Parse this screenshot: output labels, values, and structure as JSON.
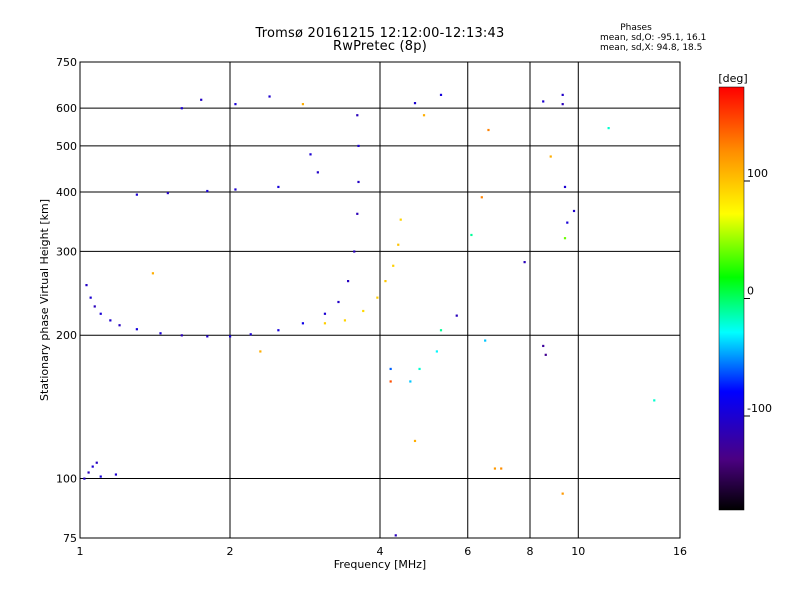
{
  "header": {
    "title": "Tromsø 20161215 12:12:00-12:13:43",
    "subtitle": "RwPretec (8p)",
    "phases_title": "Phases",
    "phases_o": "mean, sd,O: -95.1, 16.1",
    "phases_x": "mean, sd,X:  94.8, 18.5"
  },
  "chart_data": {
    "type": "scatter",
    "xscale": "log",
    "yscale": "log",
    "xlim": [
      1,
      16
    ],
    "ylim": [
      75,
      750
    ],
    "xlabel": "Frequency [MHz]",
    "ylabel": "Stationary phase Virtual Height [km]",
    "x_ticks": [
      1,
      2,
      4,
      6,
      8,
      10,
      16
    ],
    "x_tick_labels": [
      "1",
      "2",
      "4",
      "6",
      "8",
      "10",
      "16"
    ],
    "y_ticks": [
      75,
      100,
      200,
      300,
      400,
      500,
      600,
      750
    ],
    "y_tick_labels": [
      "75",
      "100",
      "200",
      "300",
      "400",
      "500",
      "600",
      "750"
    ],
    "grid": true,
    "colorbar": {
      "label": "[deg]",
      "range": [
        -180,
        180
      ],
      "ticks": [
        -100,
        0,
        100
      ],
      "tick_labels": [
        "-100",
        "0",
        "100"
      ],
      "colormap": "rainbow"
    },
    "points": [
      {
        "f": 1.02,
        "h": 100,
        "phase": -105
      },
      {
        "f": 1.04,
        "h": 103,
        "phase": -110
      },
      {
        "f": 1.06,
        "h": 106,
        "phase": -100
      },
      {
        "f": 1.08,
        "h": 108,
        "phase": -108
      },
      {
        "f": 1.1,
        "h": 101,
        "phase": -95
      },
      {
        "f": 1.18,
        "h": 102,
        "phase": -102
      },
      {
        "f": 1.03,
        "h": 255,
        "phase": -105
      },
      {
        "f": 1.05,
        "h": 240,
        "phase": -100
      },
      {
        "f": 1.07,
        "h": 230,
        "phase": -110
      },
      {
        "f": 1.1,
        "h": 222,
        "phase": -98
      },
      {
        "f": 1.15,
        "h": 215,
        "phase": -102
      },
      {
        "f": 1.2,
        "h": 210,
        "phase": -108
      },
      {
        "f": 1.3,
        "h": 206,
        "phase": -95
      },
      {
        "f": 1.45,
        "h": 202,
        "phase": -100
      },
      {
        "f": 1.6,
        "h": 200,
        "phase": -112
      },
      {
        "f": 1.8,
        "h": 199,
        "phase": -104
      },
      {
        "f": 2.0,
        "h": 199,
        "phase": -98
      },
      {
        "f": 2.2,
        "h": 201,
        "phase": -100
      },
      {
        "f": 2.5,
        "h": 205,
        "phase": -96
      },
      {
        "f": 2.8,
        "h": 212,
        "phase": -90
      },
      {
        "f": 3.1,
        "h": 222,
        "phase": -100
      },
      {
        "f": 3.3,
        "h": 235,
        "phase": -105
      },
      {
        "f": 3.45,
        "h": 260,
        "phase": -108
      },
      {
        "f": 3.55,
        "h": 300,
        "phase": -110
      },
      {
        "f": 3.6,
        "h": 360,
        "phase": -112
      },
      {
        "f": 3.62,
        "h": 420,
        "phase": -106
      },
      {
        "f": 3.62,
        "h": 500,
        "phase": -100
      },
      {
        "f": 3.6,
        "h": 580,
        "phase": -110
      },
      {
        "f": 3.1,
        "h": 212,
        "phase": 95
      },
      {
        "f": 3.4,
        "h": 215,
        "phase": 92
      },
      {
        "f": 3.7,
        "h": 225,
        "phase": 90
      },
      {
        "f": 3.95,
        "h": 240,
        "phase": 96
      },
      {
        "f": 4.1,
        "h": 260,
        "phase": 98
      },
      {
        "f": 4.25,
        "h": 280,
        "phase": 94
      },
      {
        "f": 4.35,
        "h": 310,
        "phase": 100
      },
      {
        "f": 4.4,
        "h": 350,
        "phase": 92
      },
      {
        "f": 1.3,
        "h": 395,
        "phase": -100
      },
      {
        "f": 1.5,
        "h": 398,
        "phase": -106
      },
      {
        "f": 1.8,
        "h": 402,
        "phase": -98
      },
      {
        "f": 2.05,
        "h": 405,
        "phase": -102
      },
      {
        "f": 2.5,
        "h": 410,
        "phase": -96
      },
      {
        "f": 3.0,
        "h": 440,
        "phase": -104
      },
      {
        "f": 1.6,
        "h": 600,
        "phase": -100
      },
      {
        "f": 1.75,
        "h": 625,
        "phase": -105
      },
      {
        "f": 2.05,
        "h": 612,
        "phase": -98
      },
      {
        "f": 2.4,
        "h": 635,
        "phase": -102
      },
      {
        "f": 4.7,
        "h": 615,
        "phase": -100
      },
      {
        "f": 5.3,
        "h": 640,
        "phase": -95
      },
      {
        "f": 8.5,
        "h": 620,
        "phase": -100
      },
      {
        "f": 9.3,
        "h": 612,
        "phase": -110
      },
      {
        "f": 9.3,
        "h": 640,
        "phase": -104
      },
      {
        "f": 9.4,
        "h": 410,
        "phase": -100
      },
      {
        "f": 9.5,
        "h": 345,
        "phase": -98
      },
      {
        "f": 9.8,
        "h": 365,
        "phase": -102
      },
      {
        "f": 7.8,
        "h": 285,
        "phase": -110
      },
      {
        "f": 8.5,
        "h": 190,
        "phase": -125
      },
      {
        "f": 8.6,
        "h": 182,
        "phase": -130
      },
      {
        "f": 6.1,
        "h": 325,
        "phase": -10
      },
      {
        "f": 6.5,
        "h": 195,
        "phase": -40
      },
      {
        "f": 6.6,
        "h": 540,
        "phase": 130
      },
      {
        "f": 6.8,
        "h": 105,
        "phase": 120
      },
      {
        "f": 7.0,
        "h": 105,
        "phase": 125
      },
      {
        "f": 9.3,
        "h": 93,
        "phase": 120
      },
      {
        "f": 9.4,
        "h": 320,
        "phase": 40
      },
      {
        "f": 8.8,
        "h": 475,
        "phase": 110
      },
      {
        "f": 11.5,
        "h": 545,
        "phase": -20
      },
      {
        "f": 14.2,
        "h": 146,
        "phase": -20
      },
      {
        "f": 4.7,
        "h": 120,
        "phase": 110
      },
      {
        "f": 4.3,
        "h": 76,
        "phase": -110
      },
      {
        "f": 4.2,
        "h": 160,
        "phase": 150
      },
      {
        "f": 4.2,
        "h": 170,
        "phase": -60
      },
      {
        "f": 5.2,
        "h": 185,
        "phase": -30
      },
      {
        "f": 5.3,
        "h": 205,
        "phase": -10
      },
      {
        "f": 5.7,
        "h": 220,
        "phase": -110
      },
      {
        "f": 4.9,
        "h": 580,
        "phase": 110
      },
      {
        "f": 6.4,
        "h": 390,
        "phase": 130
      },
      {
        "f": 2.9,
        "h": 480,
        "phase": -100
      },
      {
        "f": 2.8,
        "h": 612,
        "phase": 110
      },
      {
        "f": 1.4,
        "h": 270,
        "phase": 110
      },
      {
        "f": 2.3,
        "h": 185,
        "phase": 110
      },
      {
        "f": 4.6,
        "h": 160,
        "phase": -40
      },
      {
        "f": 4.8,
        "h": 170,
        "phase": -20
      }
    ]
  }
}
